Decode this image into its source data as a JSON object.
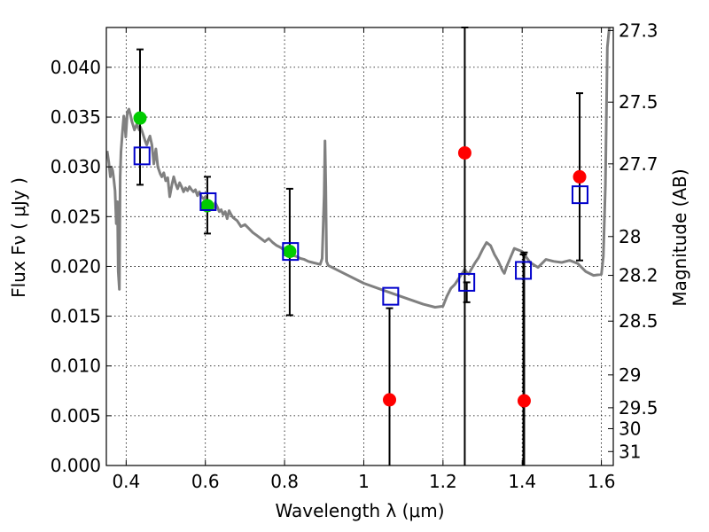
{
  "chart_data": {
    "type": "scatter",
    "xlabel": "Wavelength  λ (μm)",
    "ylabel": "Flux  Fν  ( μJy )",
    "ylabel2": "Magnitude (AB)",
    "xlim": [
      0.35,
      1.63
    ],
    "ylim": [
      0.0,
      0.044
    ],
    "grid": true,
    "x_ticks": [
      0.4,
      0.6,
      0.8,
      1.0,
      1.2,
      1.4,
      1.6
    ],
    "x_tick_labels": [
      "0.4",
      "0.6",
      "0.8",
      "1",
      "1.2",
      "1.4",
      "1.6"
    ],
    "y_ticks": [
      0.0,
      0.005,
      0.01,
      0.015,
      0.02,
      0.025,
      0.03,
      0.035,
      0.04
    ],
    "y_tick_labels": [
      "0.000",
      "0.005",
      "0.010",
      "0.015",
      "0.020",
      "0.025",
      "0.030",
      "0.035",
      "0.040"
    ],
    "mag_ticks": [
      {
        "label": "27.3",
        "flux": 0.0437
      },
      {
        "label": "27.5",
        "flux": 0.0365
      },
      {
        "label": "27.7",
        "flux": 0.0303
      },
      {
        "label": "28",
        "flux": 0.023
      },
      {
        "label": "28.2",
        "flux": 0.0191
      },
      {
        "label": "28.5",
        "flux": 0.0145
      },
      {
        "label": "29",
        "flux": 0.0091
      },
      {
        "label": "29.5",
        "flux": 0.0058
      },
      {
        "label": "30",
        "flux": 0.0037
      },
      {
        "label": "31",
        "flux": 0.0014
      }
    ],
    "colors": {
      "model_line": "#808080",
      "green_points": "#00cc00",
      "red_points": "#ff0000",
      "model_squares": "#0000cc",
      "error_bars": "#000000"
    },
    "series": [
      {
        "kind": "model_spectrum",
        "x": [
          0.352,
          0.356,
          0.36,
          0.363,
          0.366,
          0.369,
          0.372,
          0.375,
          0.378,
          0.38,
          0.383,
          0.385,
          0.387,
          0.39,
          0.392,
          0.394,
          0.396,
          0.399,
          0.403,
          0.407,
          0.411,
          0.415,
          0.418,
          0.421,
          0.424,
          0.427,
          0.43,
          0.433,
          0.436,
          0.44,
          0.444,
          0.448,
          0.452,
          0.456,
          0.46,
          0.465,
          0.47,
          0.475,
          0.48,
          0.486,
          0.49,
          0.495,
          0.5,
          0.505,
          0.51,
          0.516,
          0.52,
          0.525,
          0.53,
          0.535,
          0.54,
          0.545,
          0.55,
          0.555,
          0.56,
          0.565,
          0.57,
          0.575,
          0.58,
          0.585,
          0.59,
          0.595,
          0.6,
          0.605,
          0.61,
          0.615,
          0.62,
          0.625,
          0.63,
          0.635,
          0.64,
          0.645,
          0.65,
          0.655,
          0.66,
          0.665,
          0.67,
          0.68,
          0.69,
          0.7,
          0.71,
          0.72,
          0.73,
          0.74,
          0.75,
          0.76,
          0.77,
          0.78,
          0.79,
          0.8,
          0.81,
          0.82,
          0.83,
          0.84,
          0.85,
          0.86,
          0.87,
          0.88,
          0.89,
          0.895,
          0.9,
          0.902,
          0.904,
          0.906,
          0.91,
          0.92,
          0.95,
          1.0,
          1.05,
          1.1,
          1.15,
          1.18,
          1.2,
          1.21,
          1.22,
          1.23,
          1.24,
          1.25,
          1.255,
          1.26,
          1.265,
          1.27,
          1.28,
          1.29,
          1.3,
          1.31,
          1.32,
          1.33,
          1.34,
          1.35,
          1.355,
          1.36,
          1.38,
          1.4,
          1.42,
          1.44,
          1.46,
          1.48,
          1.5,
          1.52,
          1.54,
          1.56,
          1.58,
          1.6,
          1.605,
          1.61,
          1.615,
          1.62
        ],
        "y": [
          0.0316,
          0.0305,
          0.029,
          0.03,
          0.0296,
          0.0287,
          0.0276,
          0.0243,
          0.0265,
          0.0195,
          0.0177,
          0.029,
          0.0315,
          0.0332,
          0.0342,
          0.0351,
          0.0347,
          0.033,
          0.0355,
          0.0358,
          0.0352,
          0.0345,
          0.0341,
          0.0337,
          0.034,
          0.0343,
          0.034,
          0.0337,
          0.034,
          0.0336,
          0.0331,
          0.0326,
          0.0322,
          0.0327,
          0.0331,
          0.0322,
          0.0303,
          0.0318,
          0.03,
          0.0293,
          0.029,
          0.0294,
          0.0286,
          0.0289,
          0.027,
          0.0283,
          0.029,
          0.0283,
          0.0278,
          0.0284,
          0.028,
          0.0275,
          0.0279,
          0.0276,
          0.028,
          0.0277,
          0.0275,
          0.0277,
          0.0271,
          0.0275,
          0.027,
          0.0268,
          0.027,
          0.0266,
          0.0264,
          0.0262,
          0.0258,
          0.0264,
          0.026,
          0.0255,
          0.0257,
          0.0252,
          0.0255,
          0.0248,
          0.0256,
          0.0252,
          0.0249,
          0.0246,
          0.024,
          0.0242,
          0.0238,
          0.0234,
          0.0231,
          0.0228,
          0.0225,
          0.0228,
          0.0224,
          0.0221,
          0.0219,
          0.0216,
          0.0214,
          0.0211,
          0.021,
          0.0208,
          0.0207,
          0.0205,
          0.0204,
          0.0203,
          0.0202,
          0.0208,
          0.0272,
          0.0326,
          0.028,
          0.0205,
          0.0201,
          0.0199,
          0.0193,
          0.0183,
          0.0176,
          0.0169,
          0.0162,
          0.0159,
          0.016,
          0.017,
          0.0178,
          0.0182,
          0.0188,
          0.0194,
          0.0197,
          0.0194,
          0.0192,
          0.0196,
          0.0203,
          0.0209,
          0.0217,
          0.0224,
          0.0221,
          0.0212,
          0.0205,
          0.0196,
          0.0193,
          0.0199,
          0.0218,
          0.0215,
          0.0204,
          0.0199,
          0.0207,
          0.0205,
          0.0204,
          0.0206,
          0.0203,
          0.0195,
          0.0191,
          0.0192,
          0.021,
          0.0282,
          0.042,
          0.044
        ]
      },
      {
        "kind": "observed_errors",
        "x": [
          0.435,
          0.605,
          0.813,
          1.065,
          1.255,
          1.405,
          1.545
        ],
        "y": [
          0.0349,
          0.0261,
          0.0215,
          0.0066,
          0.0314,
          0.0065,
          0.029
        ],
        "yerr_low": [
          0.0282,
          0.0233,
          0.0151,
          0.0,
          0.0,
          0.0,
          0.0206
        ],
        "yerr_high": [
          0.0418,
          0.029,
          0.0278,
          0.0158,
          0.044,
          0.0214,
          0.0374
        ]
      },
      {
        "kind": "observed_detected",
        "marker": "circle",
        "color": "green",
        "x": [
          0.435,
          0.605,
          0.813
        ],
        "y": [
          0.0349,
          0.0261,
          0.0215
        ]
      },
      {
        "kind": "observed_upper_limits",
        "marker": "circle",
        "color": "red",
        "x": [
          1.065,
          1.255,
          1.405,
          1.545
        ],
        "y": [
          0.0066,
          0.0314,
          0.0065,
          0.029
        ]
      },
      {
        "kind": "model_photometry",
        "marker": "square",
        "color": "blue",
        "x": [
          0.44,
          0.607,
          0.815,
          1.068,
          1.26,
          1.403,
          1.546
        ],
        "y": [
          0.0311,
          0.0265,
          0.0215,
          0.017,
          0.0184,
          0.0196,
          0.0272
        ],
        "yerr_low": [
          null,
          null,
          null,
          null,
          0.0164,
          0.0,
          null
        ],
        "yerr_high": [
          null,
          null,
          null,
          null,
          null,
          0.0212,
          null
        ]
      }
    ]
  }
}
